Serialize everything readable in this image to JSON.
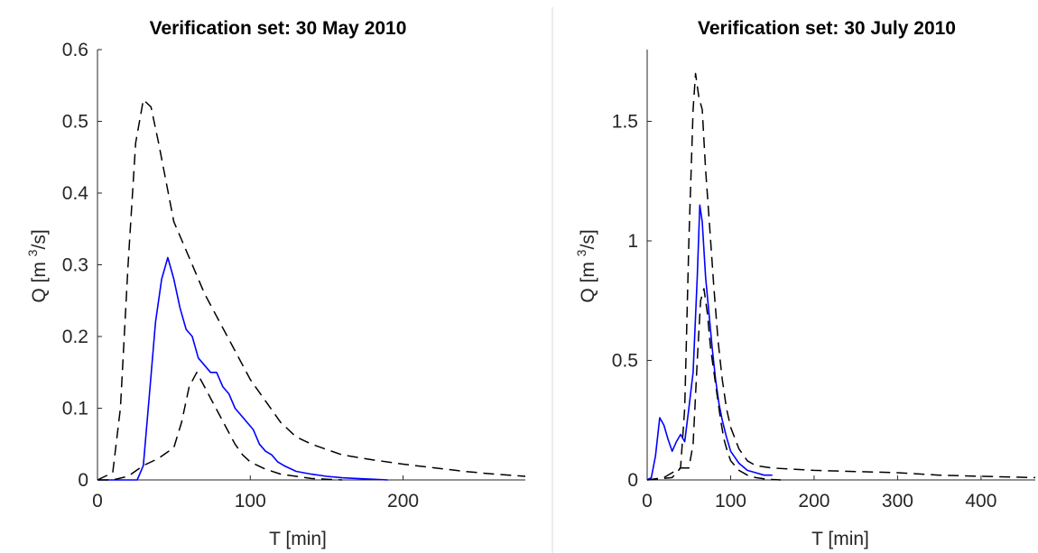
{
  "chart_data": [
    {
      "type": "line",
      "title": "Verification set: 30 May 2010",
      "xlabel": "T [min]",
      "ylabel_main": "Q [m",
      "ylabel_sup": "3",
      "ylabel_end": "/s]",
      "xlim": [
        0,
        280
      ],
      "ylim": [
        0,
        0.6
      ],
      "xticks": [
        0,
        100,
        200
      ],
      "xtick_labels": [
        "0",
        "100",
        "200"
      ],
      "yticks": [
        0,
        0.1,
        0.2,
        0.3,
        0.4,
        0.5,
        0.6
      ],
      "ytick_labels": [
        "0",
        "0.1",
        "0.2",
        "0.3",
        "0.4",
        "0.5",
        "0.6"
      ],
      "grid": false,
      "series": [
        {
          "style": "observed",
          "color": "#0000ff",
          "dash": "none",
          "x": [
            0,
            26,
            30,
            34,
            38,
            42,
            46,
            50,
            54,
            58,
            62,
            66,
            70,
            74,
            78,
            82,
            86,
            90,
            94,
            98,
            102,
            106,
            110,
            114,
            118,
            122,
            130,
            140,
            150,
            160,
            170,
            180,
            190
          ],
          "y": [
            0,
            0,
            0.02,
            0.12,
            0.22,
            0.28,
            0.31,
            0.28,
            0.24,
            0.21,
            0.2,
            0.17,
            0.16,
            0.15,
            0.15,
            0.13,
            0.12,
            0.1,
            0.09,
            0.08,
            0.07,
            0.05,
            0.04,
            0.035,
            0.025,
            0.02,
            0.012,
            0.008,
            0.005,
            0.003,
            0.002,
            0.001,
            0
          ]
        },
        {
          "style": "upper",
          "color": "#000000",
          "dash": "12,7",
          "x": [
            0,
            10,
            15,
            20,
            25,
            30,
            35,
            40,
            50,
            60,
            70,
            80,
            90,
            100,
            110,
            120,
            130,
            140,
            160,
            180,
            200,
            220,
            240,
            260,
            280
          ],
          "y": [
            0,
            0.01,
            0.1,
            0.3,
            0.47,
            0.53,
            0.52,
            0.47,
            0.36,
            0.31,
            0.26,
            0.22,
            0.18,
            0.14,
            0.11,
            0.08,
            0.06,
            0.05,
            0.035,
            0.028,
            0.022,
            0.017,
            0.012,
            0.008,
            0.005
          ]
        },
        {
          "style": "lower",
          "color": "#000000",
          "dash": "12,7",
          "x": [
            0,
            10,
            20,
            30,
            40,
            50,
            55,
            60,
            65,
            70,
            75,
            80,
            85,
            90,
            95,
            100,
            110,
            120,
            130,
            140,
            150,
            160
          ],
          "y": [
            0,
            0,
            0.005,
            0.02,
            0.03,
            0.045,
            0.08,
            0.13,
            0.15,
            0.13,
            0.11,
            0.09,
            0.07,
            0.05,
            0.035,
            0.025,
            0.015,
            0.008,
            0.005,
            0.002,
            0.001,
            0
          ]
        }
      ]
    },
    {
      "type": "line",
      "title": "Verification set: 30 July 2010",
      "xlabel": "T [min]",
      "ylabel_main": "Q [m",
      "ylabel_sup": "3",
      "ylabel_end": "/s]",
      "xlim": [
        0,
        465
      ],
      "ylim": [
        0,
        1.8
      ],
      "xticks": [
        0,
        100,
        200,
        300,
        400
      ],
      "xtick_labels": [
        "0",
        "100",
        "200",
        "300",
        "400"
      ],
      "yticks": [
        0,
        0.5,
        1,
        1.5
      ],
      "ytick_labels": [
        "0",
        "0.5",
        "1",
        "1.5"
      ],
      "grid": false,
      "series": [
        {
          "style": "observed",
          "color": "#0000ff",
          "dash": "none",
          "x": [
            0,
            5,
            10,
            15,
            20,
            25,
            30,
            35,
            40,
            45,
            50,
            55,
            60,
            63,
            66,
            70,
            74,
            78,
            82,
            86,
            90,
            95,
            100,
            110,
            120,
            130,
            140,
            150
          ],
          "y": [
            0,
            0.01,
            0.1,
            0.26,
            0.23,
            0.17,
            0.12,
            0.16,
            0.19,
            0.16,
            0.3,
            0.45,
            0.85,
            1.15,
            1.08,
            0.85,
            0.7,
            0.55,
            0.42,
            0.32,
            0.25,
            0.18,
            0.12,
            0.07,
            0.04,
            0.03,
            0.02,
            0.02
          ]
        },
        {
          "style": "upper",
          "color": "#000000",
          "dash": "12,7",
          "x": [
            0,
            30,
            40,
            45,
            50,
            55,
            58,
            62,
            66,
            70,
            75,
            80,
            85,
            90,
            95,
            100,
            110,
            120,
            130,
            150,
            200,
            250,
            300,
            350,
            400,
            465
          ],
          "y": [
            0,
            0.01,
            0.05,
            0.3,
            1.0,
            1.55,
            1.7,
            1.6,
            1.55,
            1.3,
            1.05,
            0.8,
            0.58,
            0.42,
            0.3,
            0.22,
            0.13,
            0.08,
            0.06,
            0.05,
            0.04,
            0.035,
            0.03,
            0.02,
            0.015,
            0.01
          ]
        },
        {
          "style": "lower",
          "color": "#000000",
          "dash": "12,7",
          "x": [
            0,
            20,
            30,
            40,
            50,
            55,
            60,
            64,
            68,
            72,
            76,
            80,
            84,
            88,
            92,
            96,
            100,
            110,
            120,
            130,
            140,
            150,
            160
          ],
          "y": [
            0,
            0.01,
            0.03,
            0.05,
            0.05,
            0.15,
            0.5,
            0.75,
            0.8,
            0.7,
            0.55,
            0.45,
            0.35,
            0.25,
            0.17,
            0.12,
            0.08,
            0.04,
            0.02,
            0.01,
            0.005,
            0.002,
            0
          ]
        }
      ]
    }
  ]
}
